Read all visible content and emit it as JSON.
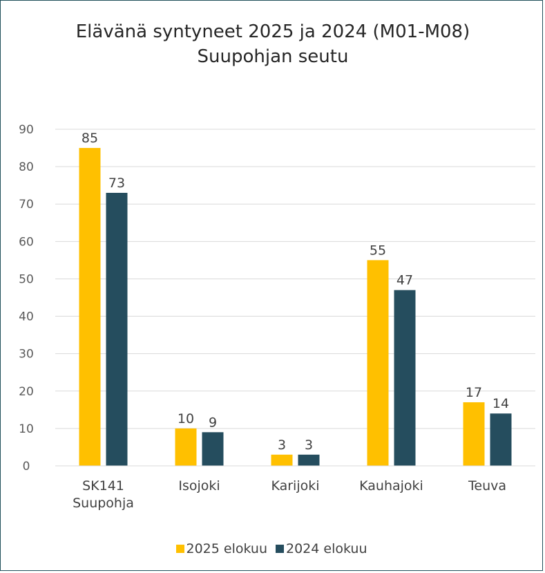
{
  "title": "Elävänä syntyneet 2025 ja 2024 (M01-M08) Suupohjan seutu",
  "chart_data": {
    "type": "bar",
    "title": "Elävänä syntyneet 2025 ja 2024 (M01-M08) Suupohjan seutu",
    "xlabel": "",
    "ylabel": "",
    "categories": [
      "SK141 Suupohja",
      "Isojoki",
      "Karijoki",
      "Kauhajoki",
      "Teuva"
    ],
    "category_lines": [
      [
        "SK141",
        "Suupohja"
      ],
      [
        "Isojoki"
      ],
      [
        "Karijoki"
      ],
      [
        "Kauhajoki"
      ],
      [
        "Teuva"
      ]
    ],
    "series": [
      {
        "name": "2025 elokuu",
        "values": [
          85,
          10,
          3,
          55,
          17
        ],
        "color": "#ffc000"
      },
      {
        "name": "2024 elokuu",
        "values": [
          73,
          9,
          3,
          47,
          14
        ],
        "color": "#254d5e"
      }
    ],
    "ylim": [
      0,
      90
    ],
    "yticks": [
      0,
      10,
      20,
      30,
      40,
      50,
      60,
      70,
      80,
      90
    ],
    "grid": true,
    "data_labels": true,
    "legend_position": "bottom"
  }
}
